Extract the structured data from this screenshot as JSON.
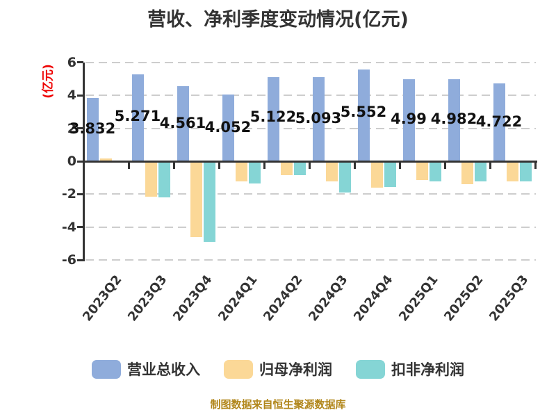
{
  "title": "营收、净利季度变动情况(亿元)",
  "footer": "制图数据来自恒生聚源数据库",
  "y_axis": {
    "name": "(亿元)",
    "tick_labels": [
      "6",
      "4",
      "2",
      "0",
      "-2",
      "-4",
      "-6"
    ],
    "tick_values": [
      6,
      4,
      2,
      0,
      -2,
      -4,
      -6
    ]
  },
  "colors": {
    "revenue_blue": "#8FACDB",
    "profit_orange": "#FBD897",
    "deducted_teal": "#85D5D5",
    "axis": "#333333",
    "grid": "#CDCDCD",
    "title_text": "#333333",
    "yaxis_name_red": "#EE0000",
    "footer_gold": "#B1861A",
    "bar_label_text": "#111111"
  },
  "chart_data": {
    "type": "bar",
    "title": "营收、净利季度变动情况(亿元)",
    "ylabel": "(亿元)",
    "ylim": [
      -6,
      6
    ],
    "y_interval": 2,
    "grid": true,
    "legend_position": "bottom",
    "categories": [
      "2023Q2",
      "2023Q3",
      "2023Q4",
      "2024Q1",
      "2024Q2",
      "2024Q3",
      "2024Q4",
      "2025Q1",
      "2025Q2",
      "2025Q3"
    ],
    "series": [
      {
        "name": "营业总收入",
        "color_key": "revenue_blue",
        "values": [
          3.832,
          5.271,
          4.561,
          4.052,
          5.122,
          5.093,
          5.552,
          4.99,
          4.982,
          4.722
        ],
        "labels": [
          "3.832",
          "5.271",
          "4.561",
          "4.052",
          "5.122",
          "5.093",
          "5.552",
          "4.99",
          "4.982",
          "4.722"
        ]
      },
      {
        "name": "归母净利润",
        "color_key": "profit_orange",
        "values": [
          0.18,
          -2.07,
          -4.52,
          -1.15,
          -0.77,
          -1.15,
          -1.55,
          -1.06,
          -1.31,
          -1.14
        ]
      },
      {
        "name": "扣非净利润",
        "color_key": "deducted_teal",
        "values": [
          0.05,
          -2.15,
          -4.82,
          -1.27,
          -0.8,
          -1.82,
          -1.49,
          -1.14,
          -1.14,
          -1.14
        ]
      }
    ]
  }
}
